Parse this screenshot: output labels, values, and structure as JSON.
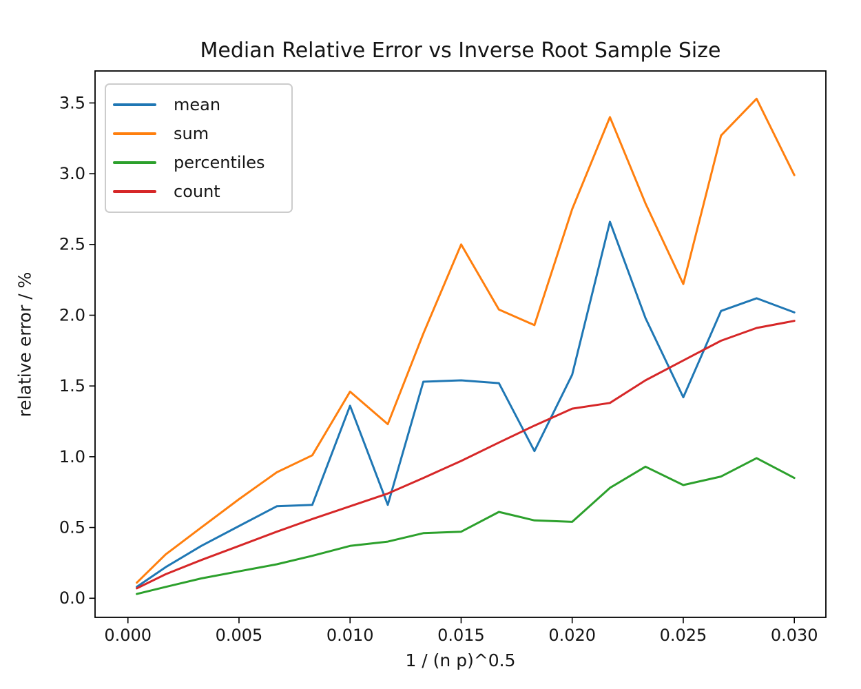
{
  "chart_data": {
    "type": "line",
    "title": "Median Relative Error vs Inverse Root Sample Size",
    "xlabel": "1 / (n p)^0.5",
    "ylabel": "relative error / %",
    "grid": false,
    "legend_position": "upper left",
    "xlim": [
      -0.00148,
      0.03142
    ],
    "ylim": [
      -0.135,
      3.726
    ],
    "xticks": {
      "values": [
        0.0,
        0.005,
        0.01,
        0.015,
        0.02,
        0.025,
        0.03
      ],
      "labels": [
        "0.000",
        "0.005",
        "0.010",
        "0.015",
        "0.020",
        "0.025",
        "0.030"
      ]
    },
    "yticks": {
      "values": [
        0.0,
        0.5,
        1.0,
        1.5,
        2.0,
        2.5,
        3.0,
        3.5
      ],
      "labels": [
        "0.0",
        "0.5",
        "1.0",
        "1.5",
        "2.0",
        "2.5",
        "3.0",
        "3.5"
      ]
    },
    "x": [
      0.0004,
      0.0017,
      0.0033,
      0.005,
      0.0067,
      0.0083,
      0.01,
      0.0117,
      0.0133,
      0.015,
      0.0167,
      0.0183,
      0.02,
      0.0217,
      0.0233,
      0.025,
      0.0267,
      0.0283,
      0.03
    ],
    "series": [
      {
        "name": "mean",
        "color": "#1f77b4",
        "values": [
          0.08,
          0.22,
          0.37,
          0.51,
          0.65,
          0.66,
          1.36,
          0.66,
          1.53,
          1.54,
          1.52,
          1.04,
          1.58,
          2.66,
          1.98,
          1.42,
          2.03,
          2.12,
          2.02
        ]
      },
      {
        "name": "sum",
        "color": "#ff7f0e",
        "values": [
          0.11,
          0.31,
          0.5,
          0.7,
          0.89,
          1.01,
          1.46,
          1.23,
          1.87,
          2.5,
          2.04,
          1.93,
          2.75,
          3.4,
          2.79,
          2.22,
          3.27,
          3.53,
          2.99
        ]
      },
      {
        "name": "percentiles",
        "color": "#2ca02c",
        "values": [
          0.03,
          0.08,
          0.14,
          0.19,
          0.24,
          0.3,
          0.37,
          0.4,
          0.46,
          0.47,
          0.61,
          0.55,
          0.54,
          0.78,
          0.93,
          0.8,
          0.86,
          0.99,
          0.85
        ]
      },
      {
        "name": "count",
        "color": "#d62728",
        "values": [
          0.07,
          0.17,
          0.27,
          0.37,
          0.47,
          0.56,
          0.65,
          0.74,
          0.85,
          0.97,
          1.1,
          1.22,
          1.34,
          1.38,
          1.54,
          1.68,
          1.82,
          1.91,
          1.96
        ]
      }
    ]
  }
}
